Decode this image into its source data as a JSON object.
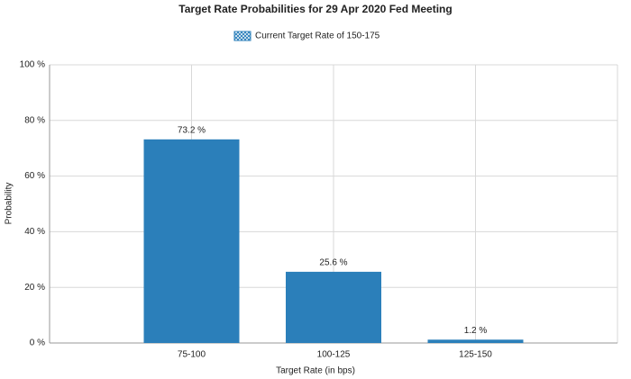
{
  "chart_data": {
    "type": "bar",
    "title": "Target Rate Probabilities for 29 Apr 2020 Fed Meeting",
    "x_label": "Target Rate (in bps)",
    "y_label": "Probability",
    "categories": [
      "75-100",
      "100-125",
      "125-150"
    ],
    "series": [
      {
        "name": "Current Target Rate of 150-175",
        "color": "#2b7fba",
        "values": [
          73.2,
          25.6,
          1.2
        ],
        "value_labels": [
          "73.2 %",
          "25.6 %",
          "1.2 %"
        ]
      }
    ],
    "ylim": [
      0,
      100
    ],
    "yticks": [
      {
        "value": 0,
        "label": "0 %"
      },
      {
        "value": 20,
        "label": "20 %"
      },
      {
        "value": 40,
        "label": "40 %"
      },
      {
        "value": 60,
        "label": "60 %"
      },
      {
        "value": 80,
        "label": "80 %"
      },
      {
        "value": 100,
        "label": "100 %"
      }
    ],
    "grid": true,
    "legend": "top"
  }
}
